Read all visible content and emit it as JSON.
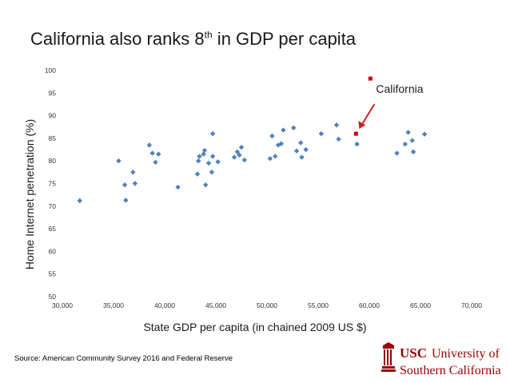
{
  "slide": {
    "title_main": "California also ranks 8",
    "title_sup": "th",
    "title_rest": " in GDP per capita",
    "source": "Source: American Community Survey 2016 and Federal Reserve",
    "logo": {
      "name": "USC",
      "line1": "University of",
      "line2": "Southern California",
      "brand_color": "#990000"
    }
  },
  "chart_data": {
    "type": "scatter",
    "xlabel": "State GDP per capita (in chained 2009 US $)",
    "ylabel": "Home Internet penetration (%)",
    "xlim": [
      30000,
      70000
    ],
    "ylim": [
      50,
      100
    ],
    "x_ticks": [
      "30,000",
      "35,000",
      "40,000",
      "45,000",
      "50,000",
      "55,000",
      "60,000",
      "65,000",
      "70,000"
    ],
    "y_ticks": [
      "50",
      "55",
      "60",
      "65",
      "70",
      "75",
      "80",
      "85",
      "90",
      "95",
      "100"
    ],
    "grid": false,
    "marker_color": "#4f81bd",
    "highlight": {
      "label": "California",
      "x": 58700,
      "y": 86,
      "color": "#cc0000"
    },
    "points": [
      {
        "x": 31700,
        "y": 71.2
      },
      {
        "x": 35500,
        "y": 80
      },
      {
        "x": 36100,
        "y": 74.7
      },
      {
        "x": 36200,
        "y": 71.3
      },
      {
        "x": 36900,
        "y": 77.5
      },
      {
        "x": 37100,
        "y": 75
      },
      {
        "x": 38500,
        "y": 83.5
      },
      {
        "x": 38800,
        "y": 81.7
      },
      {
        "x": 39100,
        "y": 79.7
      },
      {
        "x": 39400,
        "y": 81.5
      },
      {
        "x": 41300,
        "y": 74.2
      },
      {
        "x": 43200,
        "y": 77.1
      },
      {
        "x": 43300,
        "y": 80
      },
      {
        "x": 43400,
        "y": 81
      },
      {
        "x": 43800,
        "y": 81.5
      },
      {
        "x": 43900,
        "y": 82.3
      },
      {
        "x": 44000,
        "y": 74.7
      },
      {
        "x": 44300,
        "y": 79.5
      },
      {
        "x": 44600,
        "y": 77.5
      },
      {
        "x": 44700,
        "y": 81
      },
      {
        "x": 44700,
        "y": 86
      },
      {
        "x": 45200,
        "y": 79.8
      },
      {
        "x": 46800,
        "y": 80.8
      },
      {
        "x": 47100,
        "y": 82
      },
      {
        "x": 47300,
        "y": 81.3
      },
      {
        "x": 47500,
        "y": 83
      },
      {
        "x": 47800,
        "y": 80.2
      },
      {
        "x": 50300,
        "y": 80.5
      },
      {
        "x": 50500,
        "y": 85.5
      },
      {
        "x": 50800,
        "y": 81
      },
      {
        "x": 51100,
        "y": 83.5
      },
      {
        "x": 51400,
        "y": 83.8
      },
      {
        "x": 51600,
        "y": 86.8
      },
      {
        "x": 52600,
        "y": 87.3
      },
      {
        "x": 52900,
        "y": 82.2
      },
      {
        "x": 53300,
        "y": 84
      },
      {
        "x": 53400,
        "y": 80.8
      },
      {
        "x": 53800,
        "y": 82.5
      },
      {
        "x": 55300,
        "y": 86
      },
      {
        "x": 56800,
        "y": 87.9
      },
      {
        "x": 57000,
        "y": 84.8
      },
      {
        "x": 58800,
        "y": 83.7
      },
      {
        "x": 62700,
        "y": 81.7
      },
      {
        "x": 63500,
        "y": 83.7
      },
      {
        "x": 63800,
        "y": 86.3
      },
      {
        "x": 64200,
        "y": 84.5
      },
      {
        "x": 64300,
        "y": 82
      },
      {
        "x": 65400,
        "y": 85.9
      }
    ]
  }
}
